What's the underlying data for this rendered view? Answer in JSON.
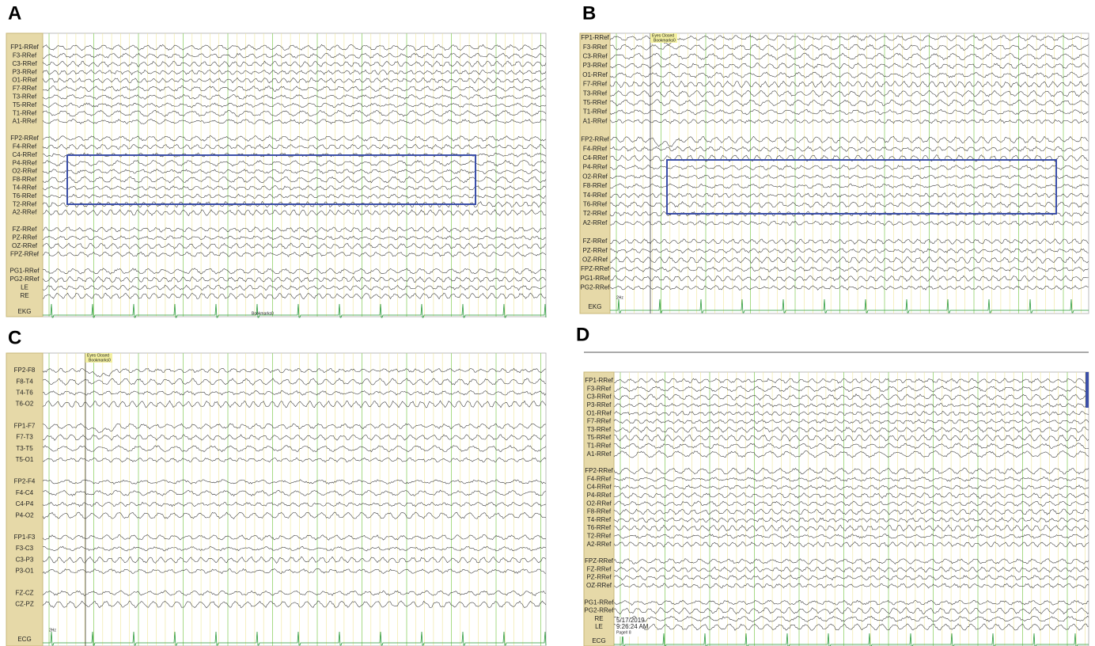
{
  "panels": [
    {
      "label": "A",
      "channels": [
        [
          "FP1-RRef",
          "F3-RRef",
          "C3-RRef",
          "P3-RRef",
          "O1-RRef",
          "F7-RRef",
          "T3-RRef",
          "T5-RRef",
          "T1-RRef",
          "A1-RRef"
        ],
        [
          "FP2-RRef",
          "F4-RRef",
          "C4-RRef",
          "P4-RRef",
          "O2-RRef",
          "F8-RRef",
          "T4-RRef",
          "T6-RRef",
          "T2-RRef",
          "A2-RRef"
        ],
        [
          "FZ-RRef",
          "PZ-RRef",
          "OZ-RRef",
          "FPZ-RRef"
        ],
        [
          "PG1-RRef",
          "PG2-RRef",
          "LE",
          "RE"
        ]
      ],
      "ecg": "EKG",
      "bookmark": "Bookmarks0"
    },
    {
      "label": "B",
      "channels": [
        [
          "FP1-RRef",
          "F3-RRef",
          "C3-RRef",
          "P3-RRef",
          "O1-RRef",
          "F7-RRef",
          "T3-RRef",
          "T5-RRef",
          "T1-RRef",
          "A1-RRef"
        ],
        [
          "FP2-RRef",
          "F4-RRef",
          "C4-RRef",
          "P4-RRef",
          "O2-RRef",
          "F8-RRef",
          "T4-RRef",
          "T6-RRef",
          "T2-RRef",
          "A2-RRef"
        ],
        [
          "FZ-RRef",
          "PZ-RRef",
          "OZ-RRef",
          "FPZ-RRef",
          "PG1-RRef",
          "PG2-RRef"
        ]
      ],
      "ecg": "EKG",
      "filter": "2Hz",
      "event": "Eyes Closed",
      "bookmark": "Bookmarks0"
    },
    {
      "label": "C",
      "channels": [
        [
          "FP2-F8",
          "F8-T4",
          "T4-T6",
          "T6-O2"
        ],
        [
          "FP1-F7",
          "F7-T3",
          "T3-T5",
          "T5-O1"
        ],
        [
          "FP2-F4",
          "F4-C4",
          "C4-P4",
          "P4-O2"
        ],
        [
          "FP1-F3",
          "F3-C3",
          "C3-P3",
          "P3-O1"
        ],
        [
          "FZ-CZ",
          "CZ-PZ"
        ]
      ],
      "ecg": "ECG",
      "filter": "2Hz",
      "event": "Eyes Closed",
      "bookmark": "Bookmarks0"
    },
    {
      "label": "D",
      "channels": [
        [
          "FP1-RRef",
          "F3-RRef",
          "C3-RRef",
          "P3-RRef",
          "O1-RRef",
          "F7-RRef",
          "T3-RRef",
          "T5-RRef",
          "T1-RRef",
          "A1-RRef"
        ],
        [
          "FP2-RRef",
          "F4-RRef",
          "C4-RRef",
          "P4-RRef",
          "O2-RRef",
          "F8-RRef",
          "T4-RRef",
          "T6-RRef",
          "T2-RRef",
          "A2-RRef"
        ],
        [
          "FPZ-RRef",
          "FZ-RRef",
          "PZ-RRef",
          "OZ-RRef"
        ],
        [
          "PG1-RRef",
          "PG2-RRef",
          "RE",
          "LE"
        ]
      ],
      "ecg": "ECG",
      "date": "5/17/2019",
      "time": "9:26:24 AM",
      "page": "Page# 8"
    }
  ]
}
